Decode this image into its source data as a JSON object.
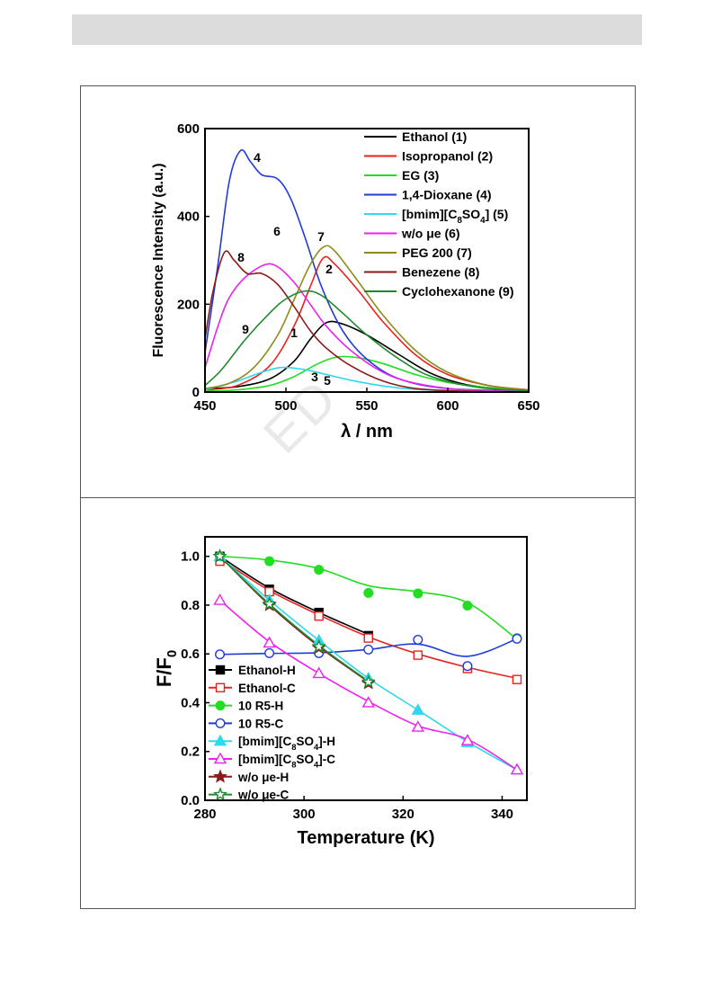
{
  "header": {
    "bar_color": "#dcdcdc"
  },
  "watermark": "ED",
  "chart_data": [
    {
      "type": "line",
      "xlabel": "λ / nm",
      "ylabel": "Fluorescence Intensity (a.u.)",
      "xlim": [
        450,
        650
      ],
      "ylim": [
        0,
        600
      ],
      "xticks": [
        "450",
        "500",
        "550",
        "600",
        "650"
      ],
      "yticks": [
        "0",
        "200",
        "400",
        "600"
      ],
      "legend_position": "top-right",
      "series": [
        {
          "name": "Ethanol (1)",
          "peak_label": "1",
          "color": "#000000",
          "points": [
            [
              450,
              8
            ],
            [
              470,
              12
            ],
            [
              490,
              30
            ],
            [
              505,
              70
            ],
            [
              515,
              120
            ],
            [
              525,
              158
            ],
            [
              535,
              155
            ],
            [
              550,
              130
            ],
            [
              570,
              85
            ],
            [
              590,
              42
            ],
            [
              610,
              18
            ],
            [
              630,
              8
            ],
            [
              650,
              3
            ]
          ]
        },
        {
          "name": "Isopropanol (2)",
          "peak_label": "2",
          "color": "#e8231f",
          "points": [
            [
              450,
              5
            ],
            [
              470,
              15
            ],
            [
              490,
              60
            ],
            [
              505,
              150
            ],
            [
              515,
              240
            ],
            [
              523,
              305
            ],
            [
              530,
              292
            ],
            [
              545,
              230
            ],
            [
              560,
              160
            ],
            [
              580,
              85
            ],
            [
              600,
              40
            ],
            [
              625,
              15
            ],
            [
              650,
              5
            ]
          ]
        },
        {
          "name": "EG (3)",
          "peak_label": "3",
          "color": "#22dd22",
          "points": [
            [
              450,
              2
            ],
            [
              470,
              5
            ],
            [
              490,
              15
            ],
            [
              505,
              35
            ],
            [
              520,
              65
            ],
            [
              532,
              80
            ],
            [
              545,
              78
            ],
            [
              560,
              65
            ],
            [
              580,
              40
            ],
            [
              600,
              22
            ],
            [
              625,
              10
            ],
            [
              650,
              3
            ]
          ]
        },
        {
          "name": "1,4-Dioxane (4)",
          "peak_label": "4",
          "color": "#1f3bd8",
          "points": [
            [
              450,
              90
            ],
            [
              458,
              290
            ],
            [
              465,
              480
            ],
            [
              472,
              550
            ],
            [
              478,
              525
            ],
            [
              485,
              495
            ],
            [
              495,
              485
            ],
            [
              503,
              440
            ],
            [
              512,
              350
            ],
            [
              522,
              240
            ],
            [
              535,
              140
            ],
            [
              550,
              75
            ],
            [
              570,
              30
            ],
            [
              600,
              8
            ],
            [
              650,
              2
            ]
          ]
        },
        {
          "name": "[bmim][C8SO4] (5)",
          "peak_label": "5",
          "color": "#2fd8ee",
          "points": [
            [
              450,
              5
            ],
            [
              470,
              25
            ],
            [
              485,
              45
            ],
            [
              497,
              56
            ],
            [
              510,
              52
            ],
            [
              525,
              40
            ],
            [
              540,
              27
            ],
            [
              560,
              14
            ],
            [
              580,
              6
            ],
            [
              610,
              2
            ],
            [
              650,
              1
            ]
          ]
        },
        {
          "name": "w/o μe (6)",
          "peak_label": "6",
          "color": "#ee22ee",
          "points": [
            [
              450,
              55
            ],
            [
              458,
              150
            ],
            [
              465,
              215
            ],
            [
              475,
              262
            ],
            [
              487,
              290
            ],
            [
              495,
              285
            ],
            [
              505,
              250
            ],
            [
              515,
              200
            ],
            [
              525,
              150
            ],
            [
              540,
              95
            ],
            [
              560,
              45
            ],
            [
              580,
              20
            ],
            [
              610,
              5
            ],
            [
              650,
              1
            ]
          ]
        },
        {
          "name": "PEG 200 (7)",
          "peak_label": "7",
          "color": "#8f8b1a",
          "points": [
            [
              450,
              8
            ],
            [
              465,
              20
            ],
            [
              480,
              55
            ],
            [
              495,
              130
            ],
            [
              505,
              210
            ],
            [
              515,
              290
            ],
            [
              523,
              330
            ],
            [
              530,
              322
            ],
            [
              545,
              250
            ],
            [
              560,
              175
            ],
            [
              580,
              95
            ],
            [
              600,
              45
            ],
            [
              625,
              15
            ],
            [
              650,
              5
            ]
          ]
        },
        {
          "name": "Benezene (8)",
          "peak_label": "8",
          "color": "#8b1a1a",
          "points": [
            [
              450,
              120
            ],
            [
              455,
              230
            ],
            [
              462,
              318
            ],
            [
              468,
              300
            ],
            [
              476,
              270
            ],
            [
              485,
              270
            ],
            [
              495,
              245
            ],
            [
              505,
              195
            ],
            [
              515,
              140
            ],
            [
              525,
              100
            ],
            [
              540,
              60
            ],
            [
              560,
              25
            ],
            [
              580,
              8
            ],
            [
              610,
              2
            ],
            [
              650,
              0
            ]
          ]
        },
        {
          "name": "Cyclohexanone (9)",
          "peak_label": "9",
          "color": "#1f8a2c",
          "points": [
            [
              450,
              15
            ],
            [
              460,
              50
            ],
            [
              475,
              120
            ],
            [
              490,
              180
            ],
            [
              500,
              212
            ],
            [
              512,
              230
            ],
            [
              522,
              220
            ],
            [
              535,
              180
            ],
            [
              550,
              130
            ],
            [
              570,
              75
            ],
            [
              590,
              35
            ],
            [
              620,
              10
            ],
            [
              650,
              3
            ]
          ]
        }
      ]
    },
    {
      "type": "line",
      "xlabel": "Temperature (K)",
      "ylabel": "F/F0",
      "xlim": [
        280,
        345
      ],
      "ylim": [
        0.0,
        1.08
      ],
      "xticks": [
        "280",
        "300",
        "320",
        "340"
      ],
      "yticks": [
        "0.0",
        "0.2",
        "0.4",
        "0.6",
        "0.8",
        "1.0"
      ],
      "legend_position": "bottom-left",
      "series": [
        {
          "name": "Ethanol-H",
          "color": "#000000",
          "marker": "square-filled",
          "points": [
            [
              283,
              1.0
            ],
            [
              293,
              0.865
            ],
            [
              303,
              0.77
            ],
            [
              313,
              0.675
            ]
          ],
          "curve": [
            [
              283,
              1.0
            ],
            [
              293,
              0.87
            ],
            [
              303,
              0.77
            ],
            [
              313,
              0.68
            ]
          ]
        },
        {
          "name": "Ethanol-C",
          "color": "#e8231f",
          "marker": "square-open",
          "points": [
            [
              283,
              0.98
            ],
            [
              293,
              0.855
            ],
            [
              303,
              0.755
            ],
            [
              313,
              0.665
            ],
            [
              323,
              0.595
            ],
            [
              333,
              0.54
            ],
            [
              343,
              0.495
            ]
          ],
          "curve": [
            [
              283,
              0.99
            ],
            [
              293,
              0.86
            ],
            [
              303,
              0.76
            ],
            [
              313,
              0.67
            ],
            [
              323,
              0.6
            ],
            [
              333,
              0.545
            ],
            [
              343,
              0.5
            ]
          ]
        },
        {
          "name": "10 R5-H",
          "color": "#22dd22",
          "marker": "circle-filled",
          "points": [
            [
              283,
              1.0
            ],
            [
              293,
              0.98
            ],
            [
              303,
              0.945
            ],
            [
              313,
              0.85
            ],
            [
              323,
              0.848
            ],
            [
              333,
              0.798
            ],
            [
              343,
              0.665
            ]
          ],
          "curve": [
            [
              283,
              1.0
            ],
            [
              293,
              0.985
            ],
            [
              303,
              0.95
            ],
            [
              313,
              0.88
            ],
            [
              323,
              0.855
            ],
            [
              333,
              0.81
            ],
            [
              343,
              0.66
            ]
          ]
        },
        {
          "name": "10 R5-C",
          "color": "#1f3bd8",
          "marker": "circle-open",
          "points": [
            [
              283,
              0.598
            ],
            [
              293,
              0.603
            ],
            [
              303,
              0.603
            ],
            [
              313,
              0.618
            ],
            [
              323,
              0.658
            ],
            [
              333,
              0.55
            ],
            [
              343,
              0.662
            ]
          ],
          "curve": [
            [
              283,
              0.598
            ],
            [
              293,
              0.602
            ],
            [
              303,
              0.605
            ],
            [
              313,
              0.618
            ],
            [
              323,
              0.64
            ],
            [
              333,
              0.59
            ],
            [
              343,
              0.662
            ]
          ]
        },
        {
          "name": "[bmim][C8SO4]-H",
          "color": "#2fd8ee",
          "marker": "triangle-filled",
          "points": [
            [
              283,
              1.0
            ],
            [
              293,
              0.82
            ],
            [
              303,
              0.655
            ],
            [
              313,
              0.5
            ],
            [
              323,
              0.37
            ],
            [
              333,
              0.237
            ],
            [
              343,
              0.125
            ]
          ],
          "curve": [
            [
              283,
              1.0
            ],
            [
              293,
              0.82
            ],
            [
              303,
              0.655
            ],
            [
              313,
              0.5
            ],
            [
              323,
              0.37
            ],
            [
              333,
              0.24
            ],
            [
              343,
              0.125
            ]
          ]
        },
        {
          "name": "[bmim][C8SO4]-C",
          "color": "#ee22ee",
          "marker": "triangle-open",
          "points": [
            [
              283,
              0.82
            ],
            [
              293,
              0.645
            ],
            [
              303,
              0.52
            ],
            [
              313,
              0.4
            ],
            [
              323,
              0.3
            ],
            [
              333,
              0.245
            ],
            [
              343,
              0.125
            ]
          ],
          "curve": [
            [
              283,
              0.82
            ],
            [
              293,
              0.65
            ],
            [
              303,
              0.52
            ],
            [
              313,
              0.405
            ],
            [
              323,
              0.305
            ],
            [
              333,
              0.25
            ],
            [
              343,
              0.125
            ]
          ]
        },
        {
          "name": "w/o μe-H",
          "color": "#8b1a1a",
          "marker": "star-filled",
          "points": [
            [
              283,
              1.0
            ],
            [
              293,
              0.8
            ],
            [
              303,
              0.625
            ],
            [
              313,
              0.48
            ]
          ],
          "curve": [
            [
              283,
              1.0
            ],
            [
              293,
              0.8
            ],
            [
              303,
              0.63
            ],
            [
              313,
              0.485
            ]
          ]
        },
        {
          "name": "w/o μe-C",
          "color": "#1f8a2c",
          "marker": "star-open",
          "points": [
            [
              283,
              1.0
            ],
            [
              293,
              0.805
            ],
            [
              303,
              0.63
            ],
            [
              313,
              0.485
            ]
          ],
          "curve": [
            [
              283,
              1.0
            ],
            [
              293,
              0.805
            ],
            [
              303,
              0.635
            ],
            [
              313,
              0.488
            ]
          ]
        }
      ]
    }
  ]
}
